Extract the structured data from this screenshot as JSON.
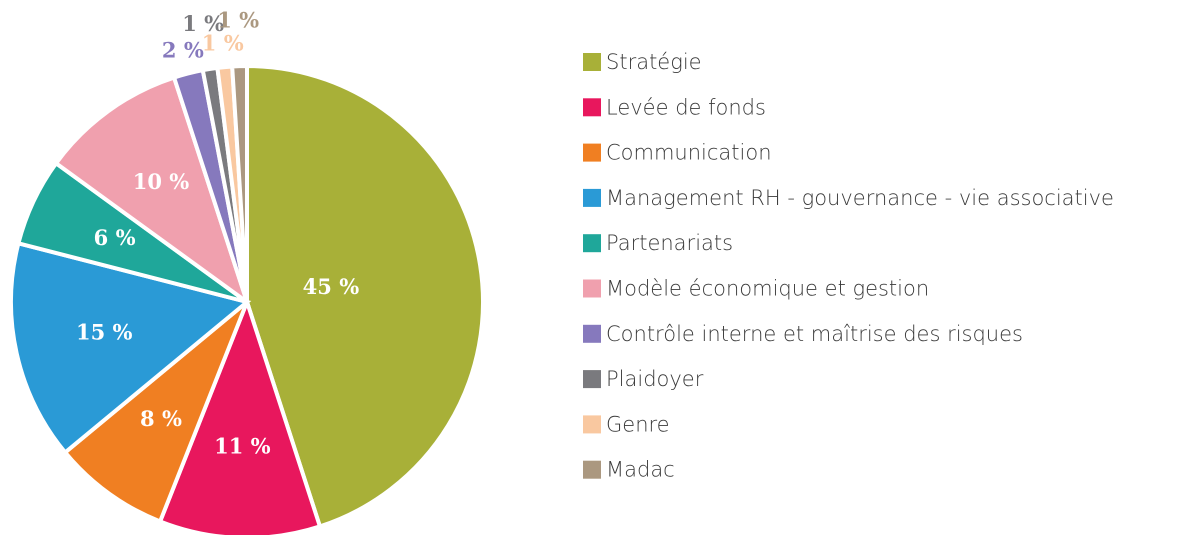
{
  "chart_data": {
    "type": "pie",
    "categories": [
      "Stratégie",
      "Levée de fonds",
      "Communication",
      "Management RH - gouvernance - vie associative",
      "Partenariats",
      "Modèle économique et gestion",
      "Contrôle interne et maîtrise des risques",
      "Plaidoyer",
      "Genre",
      "Madac"
    ],
    "values": [
      45,
      11,
      8,
      15,
      6,
      10,
      2,
      1,
      1,
      1
    ],
    "value_labels": [
      "45 %",
      "11 %",
      "8 %",
      "15 %",
      "6 %",
      "10 %",
      "2 %",
      "1 %",
      "1 %",
      "1 %"
    ],
    "colors": [
      "#a8b038",
      "#e8175d",
      "#f07f22",
      "#2a9ad6",
      "#1fa79a",
      "#f0a0ae",
      "#8679bd",
      "#7a7a7e",
      "#f9c8a0",
      "#ab9880"
    ],
    "legend": "right"
  }
}
